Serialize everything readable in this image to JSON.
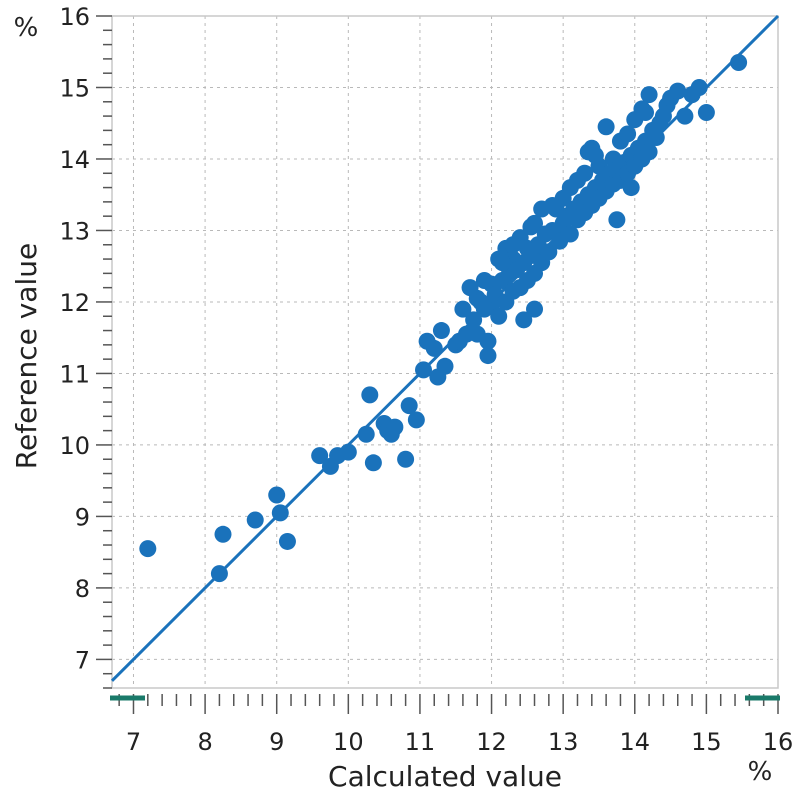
{
  "chart_data": {
    "type": "scatter",
    "xlabel": "Calculated value",
    "ylabel": "Reference value",
    "x_unit": "%",
    "y_unit": "%",
    "xlim": [
      6.7,
      16
    ],
    "ylim": [
      6.6,
      16
    ],
    "x_ticks": [
      7,
      8,
      9,
      10,
      11,
      12,
      13,
      14,
      15,
      16
    ],
    "y_ticks": [
      7,
      8,
      9,
      10,
      11,
      12,
      13,
      14,
      15,
      16
    ],
    "grid": true,
    "regression_line": {
      "x": [
        6.7,
        16.0
      ],
      "y": [
        6.7,
        16.0
      ]
    },
    "colors": {
      "points": "#1a72bb",
      "line": "#1a72bb",
      "axis_marker": "#1a7a6a"
    },
    "series": [
      {
        "x": [
          7.2,
          8.2,
          8.25,
          8.7,
          9.0,
          9.05,
          9.15,
          9.6,
          9.75,
          9.85,
          10.0,
          10.25,
          10.3,
          10.35,
          10.5,
          10.55,
          10.6,
          10.65,
          10.8,
          10.85,
          10.95,
          11.05,
          11.1,
          11.2,
          11.25,
          11.3,
          11.35,
          11.5,
          11.55,
          11.6,
          11.65,
          11.7,
          11.75,
          11.8,
          11.8,
          11.85,
          11.9,
          11.9,
          11.95,
          12.0,
          12.0,
          12.05,
          12.1,
          12.1,
          12.15,
          12.2,
          12.2,
          12.25,
          12.3,
          12.3,
          12.35,
          12.4,
          12.4,
          12.45,
          12.5,
          12.5,
          12.55,
          12.6,
          12.6,
          12.65,
          12.7,
          12.7,
          12.75,
          12.8,
          12.85,
          12.9,
          12.95,
          13.0,
          13.0,
          13.05,
          13.1,
          13.1,
          13.15,
          13.2,
          13.2,
          13.25,
          13.3,
          13.3,
          13.35,
          13.4,
          13.4,
          13.45,
          13.5,
          13.5,
          13.55,
          13.6,
          13.6,
          13.65,
          13.7,
          13.7,
          13.75,
          13.8,
          13.8,
          13.85,
          13.9,
          13.9,
          13.95,
          14.0,
          14.0,
          14.05,
          14.1,
          14.1,
          14.15,
          14.2,
          14.2,
          14.25,
          14.3,
          14.35,
          14.4,
          14.45,
          14.5,
          14.6,
          14.7,
          14.8,
          14.9,
          15.0,
          15.45,
          12.3,
          12.6,
          11.95,
          12.15,
          12.45,
          12.55,
          13.35,
          13.75,
          13.95,
          14.15,
          13.45,
          12.85
        ],
        "y": [
          8.55,
          8.2,
          8.75,
          8.95,
          9.3,
          9.05,
          8.65,
          9.85,
          9.7,
          9.85,
          9.9,
          10.15,
          10.7,
          9.75,
          10.3,
          10.2,
          10.15,
          10.25,
          9.8,
          10.55,
          10.35,
          11.05,
          11.45,
          11.35,
          10.95,
          11.6,
          11.1,
          11.4,
          11.45,
          11.9,
          11.55,
          12.2,
          11.75,
          12.05,
          11.55,
          12.0,
          11.9,
          12.3,
          11.25,
          11.95,
          12.25,
          12.1,
          11.8,
          12.6,
          12.3,
          12.0,
          12.75,
          12.4,
          12.15,
          12.6,
          12.45,
          12.2,
          12.9,
          12.55,
          12.3,
          12.75,
          12.65,
          12.4,
          13.1,
          12.8,
          12.55,
          13.3,
          12.95,
          12.7,
          13.0,
          13.3,
          12.85,
          13.1,
          13.45,
          13.2,
          12.95,
          13.6,
          13.3,
          13.15,
          13.7,
          13.4,
          13.25,
          13.8,
          13.5,
          13.35,
          14.15,
          13.6,
          13.45,
          13.9,
          13.7,
          13.55,
          14.45,
          13.8,
          13.65,
          14.0,
          13.85,
          13.7,
          14.25,
          13.95,
          13.8,
          14.35,
          14.05,
          13.9,
          14.55,
          14.15,
          14.0,
          14.7,
          14.25,
          14.1,
          14.9,
          14.4,
          14.3,
          14.5,
          14.6,
          14.75,
          14.85,
          14.95,
          14.6,
          14.9,
          15.0,
          14.65,
          15.35,
          12.8,
          11.9,
          11.45,
          12.55,
          11.75,
          13.05,
          14.1,
          13.15,
          13.6,
          14.65,
          14.05,
          13.35
        ]
      }
    ]
  }
}
